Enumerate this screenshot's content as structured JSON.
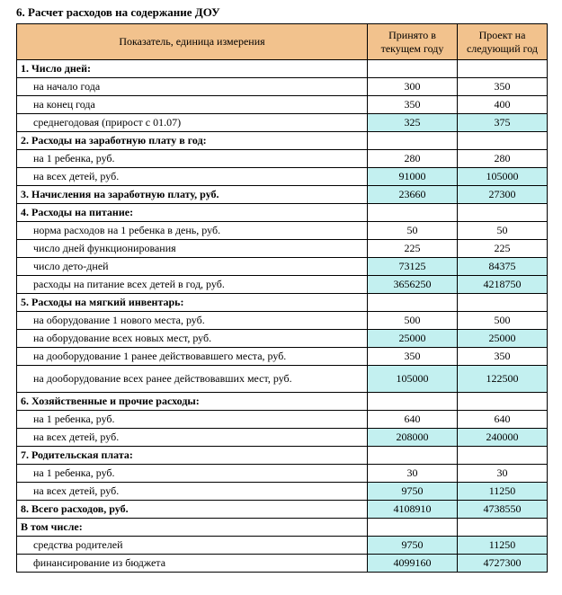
{
  "title": "6. Расчет расходов на содержание ДОУ",
  "colors": {
    "header_bg": "#f2c28d",
    "highlight_bg": "#c3f0f0",
    "white": "#ffffff"
  },
  "columns": {
    "label": "Показатель, единица измерения",
    "current": "Принято в текущем году",
    "next": "Проект на следующий год"
  },
  "col_widths": {
    "label": 390,
    "current": 100,
    "next": 100
  },
  "fonts": {
    "base_pt": 12,
    "title_pt": 13
  },
  "rows": [
    {
      "label": "1. Число дней:",
      "current": "",
      "next": "",
      "bold": true
    },
    {
      "label": "на начало года",
      "current": "300",
      "next": "350",
      "indent": true
    },
    {
      "label": "на конец года",
      "current": "350",
      "next": "400",
      "indent": true
    },
    {
      "label": "среднегодовая (прирост с 01.07)",
      "current": "325",
      "next": "375",
      "indent": true,
      "hl": true
    },
    {
      "label": "2. Расходы на заработную плату в год:",
      "current": "",
      "next": "",
      "bold": true
    },
    {
      "label": "на 1 ребенка, руб.",
      "current": "280",
      "next": "280",
      "indent": true
    },
    {
      "label": "на всех детей, руб.",
      "current": "91000",
      "next": "105000",
      "indent": true,
      "hl": true
    },
    {
      "label": "3. Начисления на заработную плату, руб.",
      "current": "23660",
      "next": "27300",
      "bold": true,
      "hl": true
    },
    {
      "label": "4. Расходы на питание:",
      "current": "",
      "next": "",
      "bold": true
    },
    {
      "label": "норма расходов на 1 ребенка в день, руб.",
      "current": "50",
      "next": "50",
      "indent": true
    },
    {
      "label": "число дней функционирования",
      "current": "225",
      "next": "225",
      "indent": true
    },
    {
      "label": "число дето-дней",
      "current": "73125",
      "next": "84375",
      "indent": true,
      "hl": true
    },
    {
      "label": "расходы на питание всех детей в год, руб.",
      "current": "3656250",
      "next": "4218750",
      "indent": true,
      "hl": true
    },
    {
      "label": "5. Расходы на мягкий инвентарь:",
      "current": "",
      "next": "",
      "bold": true
    },
    {
      "label": "на оборудование 1 нового места, руб.",
      "current": "500",
      "next": "500",
      "indent": true
    },
    {
      "label": "на оборудование всех новых мест, руб.",
      "current": "25000",
      "next": "25000",
      "indent": true,
      "hl": true
    },
    {
      "label": "на дооборудование 1 ранее действовавшего места, руб.",
      "current": "350",
      "next": "350",
      "indent": true
    },
    {
      "label": "на дооборудование всех ранее действовавших мест, руб.",
      "current": "105000",
      "next": "122500",
      "indent": true,
      "hl": true,
      "tall": true
    },
    {
      "label": "6. Хозяйственные и прочие расходы:",
      "current": "",
      "next": "",
      "bold": true
    },
    {
      "label": "на 1 ребенка, руб.",
      "current": "640",
      "next": "640",
      "indent": true
    },
    {
      "label": "на всех детей, руб.",
      "current": "208000",
      "next": "240000",
      "indent": true,
      "hl": true
    },
    {
      "label": "7. Родительская плата:",
      "current": "",
      "next": "",
      "bold": true
    },
    {
      "label": "на 1 ребенка, руб.",
      "current": "30",
      "next": "30",
      "indent": true
    },
    {
      "label": "на всех детей, руб.",
      "current": "9750",
      "next": "11250",
      "indent": true,
      "hl": true
    },
    {
      "label": "8. Всего расходов, руб.",
      "current": "4108910",
      "next": "4738550",
      "bold": true,
      "hl": true
    },
    {
      "label": "В том числе:",
      "current": "",
      "next": "",
      "bold": true
    },
    {
      "label": "средства родителей",
      "current": "9750",
      "next": "11250",
      "indent": true,
      "hl": true
    },
    {
      "label": "финансирование из бюджета",
      "current": "4099160",
      "next": "4727300",
      "indent": true,
      "hl": true
    }
  ]
}
